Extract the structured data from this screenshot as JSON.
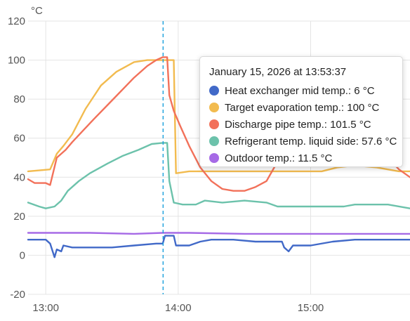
{
  "chart_data": {
    "type": "line",
    "unit_label": "°C",
    "ylim": [
      -20,
      120
    ],
    "yticks": [
      -20,
      0,
      20,
      40,
      60,
      80,
      100,
      120
    ],
    "xlim": [
      "12:52",
      "15:45"
    ],
    "xticks": [
      "13:00",
      "14:00",
      "15:00"
    ],
    "grid": true,
    "cursor_time": "13:53",
    "series": [
      {
        "name": "Heat exchanger mid temp.",
        "color": "#4169c8",
        "points": [
          [
            "12:52",
            8
          ],
          [
            "13:00",
            8
          ],
          [
            "13:02",
            6
          ],
          [
            "13:04",
            -1
          ],
          [
            "13:05",
            3
          ],
          [
            "13:07",
            2
          ],
          [
            "13:08",
            5
          ],
          [
            "13:12",
            4
          ],
          [
            "13:20",
            4
          ],
          [
            "13:30",
            4
          ],
          [
            "13:40",
            5
          ],
          [
            "13:50",
            6
          ],
          [
            "13:53",
            6
          ],
          [
            "13:54",
            10
          ],
          [
            "13:58",
            10
          ],
          [
            "13:59",
            5
          ],
          [
            "14:05",
            5
          ],
          [
            "14:10",
            7
          ],
          [
            "14:15",
            8
          ],
          [
            "14:25",
            8
          ],
          [
            "14:35",
            7
          ],
          [
            "14:47",
            7
          ],
          [
            "14:48",
            4
          ],
          [
            "14:50",
            2
          ],
          [
            "14:52",
            5
          ],
          [
            "14:55",
            5
          ],
          [
            "15:00",
            5
          ],
          [
            "15:10",
            7
          ],
          [
            "15:20",
            8
          ],
          [
            "15:45",
            8
          ]
        ]
      },
      {
        "name": "Target evaporation temp.",
        "color": "#f2bb4f",
        "points": [
          [
            "12:52",
            43
          ],
          [
            "13:02",
            44
          ],
          [
            "13:05",
            52
          ],
          [
            "13:08",
            56
          ],
          [
            "13:12",
            62
          ],
          [
            "13:18",
            75
          ],
          [
            "13:25",
            87
          ],
          [
            "13:32",
            94
          ],
          [
            "13:40",
            99
          ],
          [
            "13:46",
            100
          ],
          [
            "13:53",
            100
          ],
          [
            "13:58",
            100
          ],
          [
            "13:59",
            42
          ],
          [
            "14:05",
            43
          ],
          [
            "14:20",
            43
          ],
          [
            "14:40",
            43
          ],
          [
            "15:05",
            43
          ],
          [
            "15:12",
            45
          ],
          [
            "15:20",
            46
          ],
          [
            "15:30",
            45
          ],
          [
            "15:40",
            43
          ],
          [
            "15:45",
            43
          ]
        ]
      },
      {
        "name": "Discharge pipe temp.",
        "color": "#f2715a",
        "points": [
          [
            "12:52",
            39
          ],
          [
            "12:55",
            37
          ],
          [
            "13:00",
            37
          ],
          [
            "13:02",
            36
          ],
          [
            "13:05",
            50
          ],
          [
            "13:09",
            54
          ],
          [
            "13:12",
            58
          ],
          [
            "13:17",
            64
          ],
          [
            "13:22",
            70
          ],
          [
            "13:28",
            77
          ],
          [
            "13:34",
            84
          ],
          [
            "13:40",
            91
          ],
          [
            "13:46",
            97
          ],
          [
            "13:50",
            100
          ],
          [
            "13:53",
            101.5
          ],
          [
            "13:55",
            101.5
          ],
          [
            "13:56",
            82
          ],
          [
            "13:58",
            74
          ],
          [
            "14:01",
            66
          ],
          [
            "14:05",
            56
          ],
          [
            "14:10",
            45
          ],
          [
            "14:15",
            38
          ],
          [
            "14:20",
            34
          ],
          [
            "14:25",
            33
          ],
          [
            "14:30",
            33
          ],
          [
            "14:35",
            35
          ],
          [
            "14:40",
            38
          ],
          [
            "14:44",
            46
          ],
          [
            "14:48",
            52
          ],
          [
            "14:52",
            56
          ],
          [
            "15:30",
            56
          ],
          [
            "15:40",
            44
          ],
          [
            "15:45",
            40
          ]
        ]
      },
      {
        "name": "Refrigerant temp. liquid side",
        "color": "#6cc2ab",
        "points": [
          [
            "12:52",
            27
          ],
          [
            "12:57",
            25
          ],
          [
            "13:00",
            24
          ],
          [
            "13:04",
            25
          ],
          [
            "13:07",
            28
          ],
          [
            "13:10",
            33
          ],
          [
            "13:15",
            38
          ],
          [
            "13:20",
            42
          ],
          [
            "13:28",
            47
          ],
          [
            "13:35",
            51
          ],
          [
            "13:42",
            54
          ],
          [
            "13:48",
            57
          ],
          [
            "13:53",
            57.6
          ],
          [
            "13:55",
            57.6
          ],
          [
            "13:56",
            38
          ],
          [
            "13:58",
            27
          ],
          [
            "14:02",
            26
          ],
          [
            "14:08",
            26
          ],
          [
            "14:12",
            28
          ],
          [
            "14:20",
            27
          ],
          [
            "14:30",
            28
          ],
          [
            "14:40",
            27
          ],
          [
            "14:45",
            25
          ],
          [
            "15:00",
            25
          ],
          [
            "15:15",
            25
          ],
          [
            "15:20",
            26
          ],
          [
            "15:35",
            26
          ],
          [
            "15:45",
            24
          ]
        ]
      },
      {
        "name": "Outdoor temp.",
        "color": "#a66ae6",
        "points": [
          [
            "12:52",
            11.5
          ],
          [
            "13:20",
            11.5
          ],
          [
            "13:40",
            11
          ],
          [
            "13:53",
            11.5
          ],
          [
            "14:05",
            11.5
          ],
          [
            "14:30",
            11
          ],
          [
            "15:00",
            11
          ],
          [
            "15:45",
            11
          ]
        ]
      }
    ]
  },
  "tooltip": {
    "title": "January 15, 2026 at 13:53:37",
    "rows": [
      {
        "label": "Heat exchanger mid temp.: 6 °C",
        "color": "#4169c8"
      },
      {
        "label": "Target evaporation temp.: 100 °C",
        "color": "#f2bb4f"
      },
      {
        "label": "Discharge pipe temp.: 101.5 °C",
        "color": "#f2715a"
      },
      {
        "label": "Refrigerant temp. liquid side: 57.6 °C",
        "color": "#6cc2ab"
      },
      {
        "label": "Outdoor temp.: 11.5 °C",
        "color": "#a66ae6"
      }
    ]
  }
}
